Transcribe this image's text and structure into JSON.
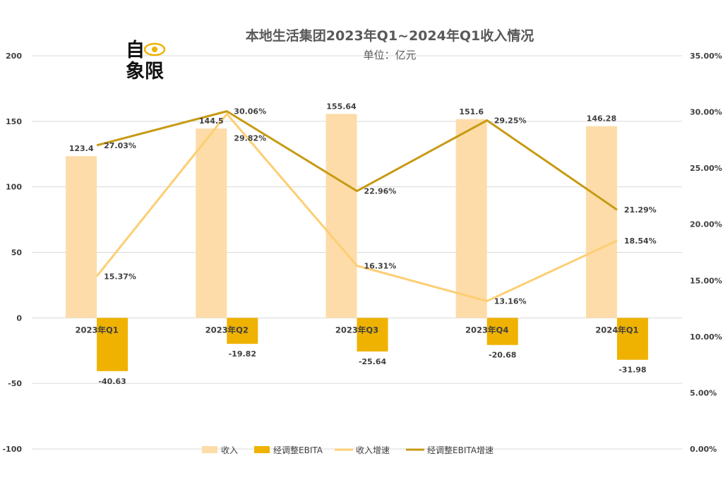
{
  "logo": {
    "line1": "自",
    "line2": "象限"
  },
  "chart_data": {
    "type": "bar",
    "title": "本地生活集团2023年Q1~2024年Q1收入情况",
    "subtitle": "单位：亿元",
    "categories": [
      "2023年Q1",
      "2023年Q2",
      "2023年Q3",
      "2023年Q4",
      "2024年Q1"
    ],
    "ylim": [
      -100,
      200
    ],
    "yticks": [
      "200",
      "150",
      "100",
      "50",
      "0",
      "-50",
      "-100"
    ],
    "y2lim": [
      0,
      35
    ],
    "y2ticks": [
      "35.00%",
      "30.00%",
      "25.00%",
      "20.00%",
      "15.00%",
      "10.00%",
      "5.00%",
      "0.00%"
    ],
    "grid": true,
    "legend_position": "bottom",
    "series": [
      {
        "name": "收入",
        "kind": "bar",
        "axis": "left",
        "color": "#FDDCA9",
        "values": [
          123.4,
          144.5,
          155.64,
          151.6,
          146.28
        ],
        "labels": [
          "123.4",
          "144.5",
          "155.64",
          "151.6",
          "146.28"
        ]
      },
      {
        "name": "经调整EBITA",
        "kind": "bar",
        "axis": "left",
        "color": "#EFB200",
        "values": [
          -40.63,
          -19.82,
          -25.64,
          -20.68,
          -31.98
        ],
        "labels": [
          "-40.63",
          "-19.82",
          "-25.64",
          "-20.68",
          "-31.98"
        ]
      },
      {
        "name": "收入增速",
        "kind": "line",
        "axis": "right",
        "color": "#FDCE72",
        "values": [
          15.37,
          29.82,
          16.31,
          13.16,
          18.54
        ],
        "labels": [
          "15.37%",
          "29.82%",
          "16.31%",
          "13.16%",
          "18.54%"
        ]
      },
      {
        "name": "经调整EBITA增速",
        "kind": "line",
        "axis": "right",
        "color": "#C79A13",
        "values": [
          27.03,
          30.06,
          22.96,
          29.25,
          21.29
        ],
        "labels": [
          "27.03%",
          "30.06%",
          "22.96%",
          "29.25%",
          "21.29%"
        ]
      }
    ]
  }
}
